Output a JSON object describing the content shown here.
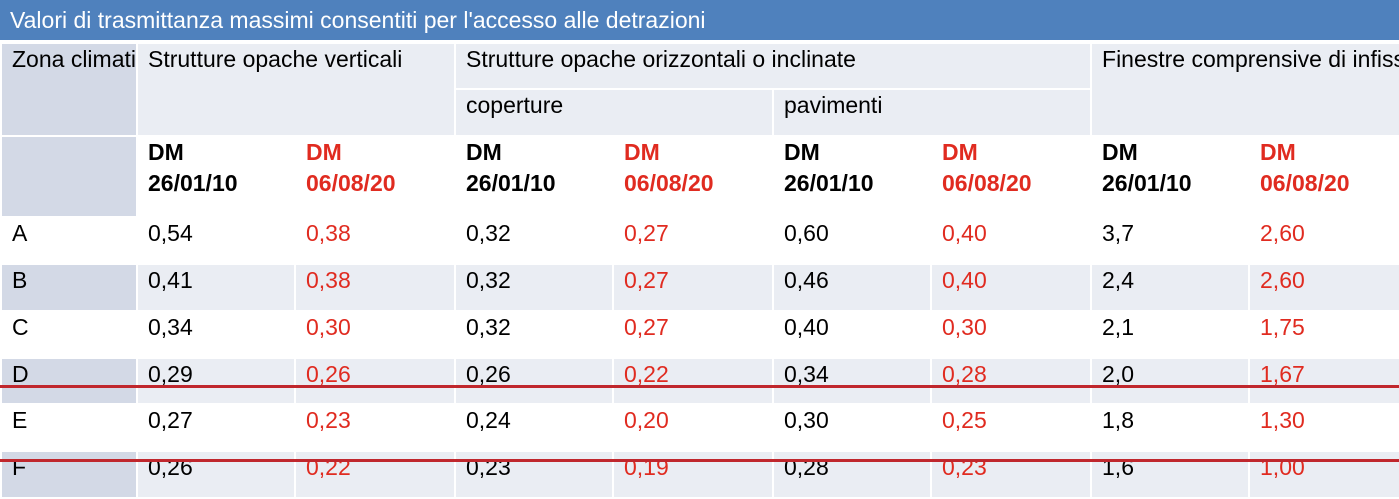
{
  "title": "Valori di trasmittanza massimi consentiti per l'accesso alle detrazioni",
  "headers": {
    "zona": "Zona climatica",
    "verticali": "Strutture opache verticali",
    "orizzontali": "Strutture opache orizzontali o inclinate",
    "coperture": "coperture",
    "pavimenti": "pavimenti",
    "finestre": "Finestre comprensive di infissi"
  },
  "dm_old": [
    "DM",
    "26/01/10"
  ],
  "dm_new": [
    "DM",
    "06/08/20"
  ],
  "colors": {
    "title_bg": "#4f81bd",
    "new_values": "#e02b20",
    "strike_line": "#c0272d"
  },
  "rows": [
    {
      "zona": "A",
      "values": [
        "0,54",
        "0,38",
        "0,32",
        "0,27",
        "0,60",
        "0,40",
        "3,7",
        "2,60"
      ]
    },
    {
      "zona": "B",
      "values": [
        "0,41",
        "0,38",
        "0,32",
        "0,27",
        "0,46",
        "0,40",
        "2,4",
        "2,60"
      ]
    },
    {
      "zona": "C",
      "values": [
        "0,34",
        "0,30",
        "0,32",
        "0,27",
        "0,40",
        "0,30",
        "2,1",
        "1,75"
      ]
    },
    {
      "zona": "D",
      "values": [
        "0,29",
        "0,26",
        "0,26",
        "0,22",
        "0,34",
        "0,28",
        "2,0",
        "1,67"
      ]
    },
    {
      "zona": "E",
      "values": [
        "0,27",
        "0,23",
        "0,24",
        "0,20",
        "0,30",
        "0,25",
        "1,8",
        "1,30"
      ]
    },
    {
      "zona": "F",
      "values": [
        "0,26",
        "0,22",
        "0,23",
        "0,19",
        "0,28",
        "0,23",
        "1,6",
        "1,00"
      ]
    }
  ]
}
